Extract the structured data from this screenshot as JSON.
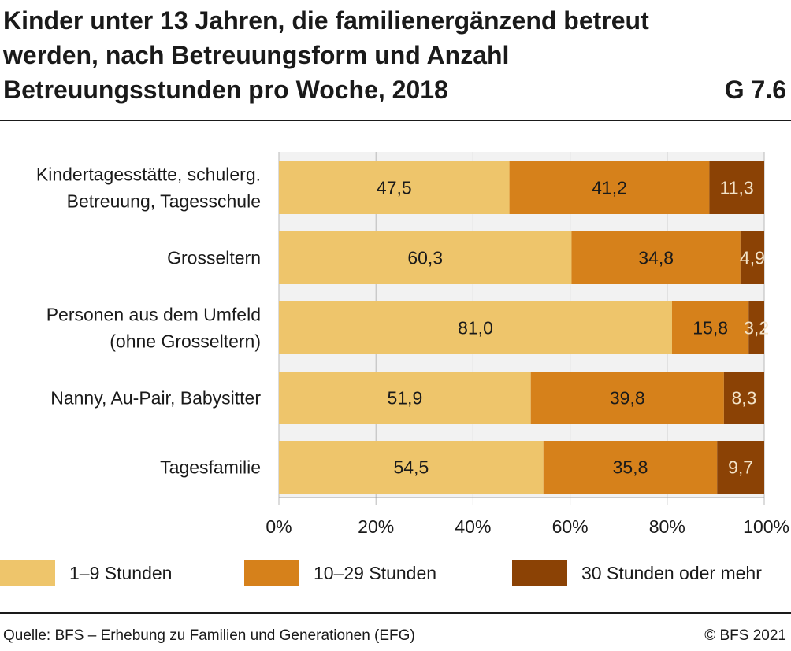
{
  "header": {
    "title": "Kinder unter 13 Jahren, die familienergänzend betreut werden, nach Betreuungsform und Anzahl Betreuungsstunden pro Woche, 2018",
    "figure_code": "G 7.6"
  },
  "chart_data": {
    "type": "bar",
    "orientation": "horizontal",
    "stacked": true,
    "percent": true,
    "categories": [
      [
        "Kindertagesstätte, schulerg.",
        "Betreuung, Tagesschule"
      ],
      [
        "Grosseltern"
      ],
      [
        "Personen aus dem Umfeld",
        "(ohne Grosseltern)"
      ],
      [
        "Nanny, Au-Pair, Babysitter"
      ],
      [
        "Tagesfamilie"
      ]
    ],
    "series": [
      {
        "name": "1–9 Stunden",
        "color": "#eec56b",
        "values": [
          47.5,
          60.3,
          81.0,
          51.9,
          54.5
        ],
        "labels": [
          "47,5",
          "60,3",
          "81,0",
          "51,9",
          "54,5"
        ],
        "label_color": "#1a1a1a"
      },
      {
        "name": "10–29 Stunden",
        "color": "#d6811b",
        "values": [
          41.2,
          34.8,
          15.8,
          39.8,
          35.8
        ],
        "labels": [
          "41,2",
          "34,8",
          "15,8",
          "39,8",
          "35,8"
        ],
        "label_color": "#1a1a1a"
      },
      {
        "name": "30 Stunden oder mehr",
        "color": "#8b4205",
        "values": [
          11.3,
          4.9,
          3.2,
          8.3,
          9.7
        ],
        "labels": [
          "11,3",
          "4,9",
          "3,2",
          "8,3",
          "9,7"
        ],
        "label_color": "#f3e3c8"
      }
    ],
    "xlim": [
      0,
      100
    ],
    "xticks": [
      "0%",
      "20%",
      "40%",
      "60%",
      "80%",
      "100%"
    ],
    "grid": true,
    "legend_position": "bottom"
  },
  "footer": {
    "source": "Quelle: BFS – Erhebung zu Familien und Generationen (EFG)",
    "copyright": "© BFS 2021"
  }
}
